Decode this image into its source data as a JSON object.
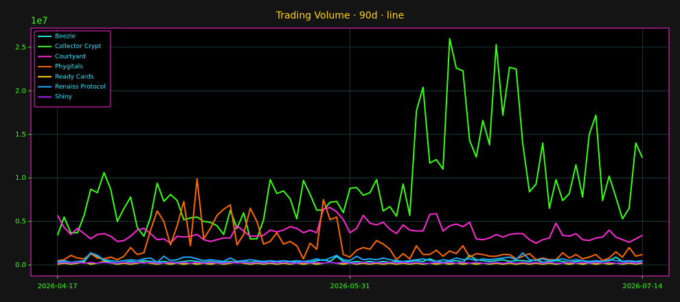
{
  "chart_data": {
    "type": "line",
    "title": "Trading Volume · 90d · line",
    "y_offset_label": "1e7",
    "grid": true,
    "legend": "upper left",
    "x": [
      "2026-04-17",
      "2026-04-18",
      "2026-04-19",
      "2026-04-20",
      "2026-04-21",
      "2026-04-22",
      "2026-04-23",
      "2026-04-24",
      "2026-04-25",
      "2026-04-26",
      "2026-04-27",
      "2026-04-28",
      "2026-04-29",
      "2026-04-30",
      "2026-05-01",
      "2026-05-02",
      "2026-05-03",
      "2026-05-04",
      "2026-05-05",
      "2026-05-06",
      "2026-05-07",
      "2026-05-08",
      "2026-05-09",
      "2026-05-10",
      "2026-05-11",
      "2026-05-12",
      "2026-05-13",
      "2026-05-14",
      "2026-05-15",
      "2026-05-16",
      "2026-05-17",
      "2026-05-18",
      "2026-05-19",
      "2026-05-20",
      "2026-05-21",
      "2026-05-22",
      "2026-05-23",
      "2026-05-24",
      "2026-05-25",
      "2026-05-26",
      "2026-05-27",
      "2026-05-28",
      "2026-05-29",
      "2026-05-30",
      "2026-05-31",
      "2026-06-01",
      "2026-06-02",
      "2026-06-03",
      "2026-06-04",
      "2026-06-05",
      "2026-06-06",
      "2026-06-07",
      "2026-06-08",
      "2026-06-09",
      "2026-06-10",
      "2026-06-11",
      "2026-06-12",
      "2026-06-13",
      "2026-06-14",
      "2026-06-15",
      "2026-06-16",
      "2026-06-17",
      "2026-06-18",
      "2026-06-19",
      "2026-06-20",
      "2026-06-21",
      "2026-06-22",
      "2026-06-23",
      "2026-06-24",
      "2026-06-25",
      "2026-06-26",
      "2026-06-27",
      "2026-06-28",
      "2026-06-29",
      "2026-06-30",
      "2026-07-01",
      "2026-07-02",
      "2026-07-03",
      "2026-07-04",
      "2026-07-05",
      "2026-07-06",
      "2026-07-07",
      "2026-07-08",
      "2026-07-09",
      "2026-07-10",
      "2026-07-11",
      "2026-07-12",
      "2026-07-13",
      "2026-07-14"
    ],
    "xlim": [
      "2026-04-13",
      "2026-07-18"
    ],
    "xticks": [
      "2026-04-17",
      "2026-05-31",
      "2026-07-14"
    ],
    "ylim": [
      -0.126,
      2.72
    ],
    "yticks": [
      {
        "value": 0,
        "label": "0.0"
      },
      0.5,
      {
        "value": 1,
        "label": "1.0"
      },
      1.5,
      {
        "value": 2,
        "label": "2.0"
      },
      2.5
    ],
    "series": [
      {
        "name": "Beezie",
        "color": "#19e6d8",
        "values": [
          0.03,
          0.04,
          0.02,
          0.03,
          0.04,
          0.13,
          0.1,
          0.05,
          0.03,
          0.02,
          0.03,
          0.04,
          0.03,
          0.05,
          0.04,
          0.03,
          0.04,
          0.03,
          0.03,
          0.04,
          0.05,
          0.04,
          0.03,
          0.04,
          0.03,
          0.03,
          0.04,
          0.03,
          0.04,
          0.03,
          0.04,
          0.03,
          0.03,
          0.04,
          0.03,
          0.04,
          0.03,
          0.04,
          0.03,
          0.05,
          0.06,
          0.04,
          0.1,
          0.04,
          0.03,
          0.04,
          0.03,
          0.04,
          0.03,
          0.04,
          0.03,
          0.04,
          0.03,
          0.04,
          0.05,
          0.04,
          0.07,
          0.04,
          0.03,
          0.04,
          0.05,
          0.03,
          0.11,
          0.06,
          0.05,
          0.04,
          0.05,
          0.06,
          0.04,
          0.05,
          0.05,
          0.04,
          0.06,
          0.03,
          0.04,
          0.05,
          0.04,
          0.03,
          0.04,
          0.05,
          0.03,
          0.04,
          0.04,
          0.05,
          0.09,
          0.04,
          0.03,
          0.04,
          0.03
        ]
      },
      {
        "name": "Collector Crypt",
        "color": "#39ff14",
        "values": [
          0.34,
          0.55,
          0.37,
          0.37,
          0.57,
          0.87,
          0.83,
          1.06,
          0.87,
          0.5,
          0.65,
          0.78,
          0.43,
          0.33,
          0.55,
          0.94,
          0.73,
          0.81,
          0.74,
          0.52,
          0.54,
          0.55,
          0.5,
          0.49,
          0.45,
          0.35,
          0.63,
          0.42,
          0.6,
          0.3,
          0.3,
          0.52,
          0.98,
          0.82,
          0.85,
          0.76,
          0.53,
          0.97,
          0.81,
          0.63,
          0.63,
          0.72,
          0.73,
          0.6,
          0.88,
          0.89,
          0.8,
          0.83,
          0.98,
          0.62,
          0.67,
          0.56,
          0.93,
          0.57,
          1.77,
          2.04,
          1.17,
          1.21,
          1.1,
          2.6,
          2.26,
          2.23,
          1.43,
          1.24,
          1.66,
          1.38,
          2.53,
          1.72,
          2.27,
          2.25,
          1.39,
          0.84,
          0.93,
          1.4,
          0.65,
          0.98,
          0.74,
          0.82,
          1.15,
          0.78,
          1.5,
          1.72,
          0.74,
          1.02,
          0.78,
          0.53,
          0.65,
          1.4,
          1.23
        ]
      },
      {
        "name": "Courtyard",
        "color": "#ff2bd6",
        "values": [
          0.57,
          0.43,
          0.35,
          0.42,
          0.36,
          0.3,
          0.35,
          0.36,
          0.33,
          0.27,
          0.28,
          0.33,
          0.4,
          0.42,
          0.36,
          0.29,
          0.3,
          0.25,
          0.33,
          0.32,
          0.33,
          0.35,
          0.29,
          0.27,
          0.29,
          0.31,
          0.31,
          0.45,
          0.39,
          0.33,
          0.33,
          0.34,
          0.4,
          0.38,
          0.4,
          0.44,
          0.42,
          0.37,
          0.4,
          0.37,
          0.64,
          0.66,
          0.61,
          0.52,
          0.37,
          0.42,
          0.57,
          0.48,
          0.46,
          0.49,
          0.41,
          0.36,
          0.46,
          0.4,
          0.39,
          0.39,
          0.58,
          0.59,
          0.39,
          0.45,
          0.47,
          0.44,
          0.49,
          0.3,
          0.29,
          0.31,
          0.35,
          0.32,
          0.35,
          0.36,
          0.36,
          0.29,
          0.25,
          0.29,
          0.31,
          0.48,
          0.34,
          0.33,
          0.36,
          0.29,
          0.28,
          0.31,
          0.32,
          0.4,
          0.32,
          0.29,
          0.26,
          0.3,
          0.34
        ]
      },
      {
        "name": "Phygitals",
        "color": "#ff6a00",
        "values": [
          0.05,
          0.06,
          0.11,
          0.08,
          0.07,
          0.13,
          0.08,
          0.07,
          0.09,
          0.06,
          0.1,
          0.2,
          0.12,
          0.14,
          0.4,
          0.62,
          0.5,
          0.23,
          0.45,
          0.73,
          0.22,
          0.99,
          0.3,
          0.42,
          0.57,
          0.64,
          0.69,
          0.23,
          0.35,
          0.65,
          0.5,
          0.24,
          0.27,
          0.37,
          0.24,
          0.27,
          0.22,
          0.07,
          0.25,
          0.18,
          0.75,
          0.52,
          0.55,
          0.12,
          0.09,
          0.17,
          0.2,
          0.18,
          0.28,
          0.24,
          0.18,
          0.06,
          0.13,
          0.07,
          0.22,
          0.12,
          0.12,
          0.17,
          0.1,
          0.16,
          0.13,
          0.22,
          0.09,
          0.13,
          0.12,
          0.1,
          0.1,
          0.12,
          0.12,
          0.07,
          0.1,
          0.13,
          0.06,
          0.08,
          0.06,
          0.06,
          0.14,
          0.08,
          0.12,
          0.07,
          0.09,
          0.12,
          0.05,
          0.08,
          0.15,
          0.09,
          0.2,
          0.1,
          0.12
        ]
      },
      {
        "name": "Ready Cards",
        "color": "#ffd400",
        "values": [
          0.01,
          0.02,
          0.01,
          0.02,
          0.03,
          0.01,
          0.02,
          0.04,
          0.02,
          0.01,
          0.02,
          0.01,
          0.02,
          0.03,
          0.02,
          0.01,
          0.02,
          0.01,
          0.02,
          0.01,
          0.02,
          0.01,
          0.02,
          0.01,
          0.02,
          0.01,
          0.02,
          0.03,
          0.02,
          0.01,
          0.02,
          0.01,
          0.02,
          0.01,
          0.02,
          0.01,
          0.02,
          0.01,
          0.02,
          0.01,
          0.02,
          0.03,
          0.02,
          0.01,
          0.02,
          0.01,
          0.02,
          0.01,
          0.02,
          0.01,
          0.02,
          0.01,
          0.02,
          0.01,
          0.02,
          0.01,
          0.02,
          0.01,
          0.02,
          0.01,
          0.02,
          0.01,
          0.02,
          0.01,
          0.02,
          0.01,
          0.02,
          0.01,
          0.02,
          0.01,
          0.02,
          0.01,
          0.02,
          0.01,
          0.02,
          0.01,
          0.02,
          0.01,
          0.02,
          0.01,
          0.02,
          0.01,
          0.02,
          0.01,
          0.02,
          0.01,
          0.02,
          0.01,
          0.02
        ]
      },
      {
        "name": "Renaiss Protocol",
        "color": "#1eaaff",
        "values": [
          0.04,
          0.05,
          0.03,
          0.04,
          0.05,
          0.14,
          0.11,
          0.06,
          0.05,
          0.04,
          0.05,
          0.06,
          0.05,
          0.07,
          0.08,
          0.03,
          0.1,
          0.05,
          0.06,
          0.09,
          0.09,
          0.07,
          0.05,
          0.06,
          0.05,
          0.04,
          0.08,
          0.04,
          0.05,
          0.06,
          0.05,
          0.04,
          0.05,
          0.04,
          0.05,
          0.04,
          0.05,
          0.04,
          0.05,
          0.07,
          0.05,
          0.08,
          0.11,
          0.06,
          0.05,
          0.1,
          0.06,
          0.07,
          0.06,
          0.08,
          0.06,
          0.05,
          0.04,
          0.05,
          0.06,
          0.07,
          0.05,
          0.04,
          0.06,
          0.05,
          0.08,
          0.06,
          0.07,
          0.05,
          0.07,
          0.06,
          0.07,
          0.08,
          0.09,
          0.06,
          0.14,
          0.06,
          0.05,
          0.07,
          0.05,
          0.06,
          0.07,
          0.05,
          0.06,
          0.05,
          0.04,
          0.05,
          0.04,
          0.06,
          0.05,
          0.04,
          0.05,
          0.04,
          0.05
        ]
      },
      {
        "name": "Shiny",
        "color": "#a020f0",
        "values": [
          0.02,
          0.03,
          0.02,
          0.03,
          0.02,
          0.03,
          0.02,
          0.03,
          0.02,
          0.02,
          0.03,
          0.02,
          0.03,
          0.02,
          0.03,
          0.02,
          0.02,
          0.03,
          0.02,
          0.03,
          0.02,
          0.03,
          0.02,
          0.03,
          0.02,
          0.02,
          0.03,
          0.02,
          0.03,
          0.02,
          0.03,
          0.02,
          0.03,
          0.02,
          0.03,
          0.02,
          0.02,
          0.03,
          0.02,
          0.03,
          0.02,
          0.03,
          0.02,
          0.03,
          0.02,
          0.02,
          0.03,
          0.02,
          0.03,
          0.02,
          0.03,
          0.02,
          0.03,
          0.02,
          0.03,
          0.02,
          0.02,
          0.03,
          0.02,
          0.03,
          0.02,
          0.03,
          0.02,
          0.03,
          0.02,
          0.02,
          0.03,
          0.02,
          0.03,
          0.02,
          0.03,
          0.02,
          0.03,
          0.02,
          0.03,
          0.02,
          0.02,
          0.03,
          0.02,
          0.03,
          0.02,
          0.03,
          0.02,
          0.03,
          0.02,
          0.02,
          0.03,
          0.02,
          0.03
        ]
      }
    ]
  }
}
